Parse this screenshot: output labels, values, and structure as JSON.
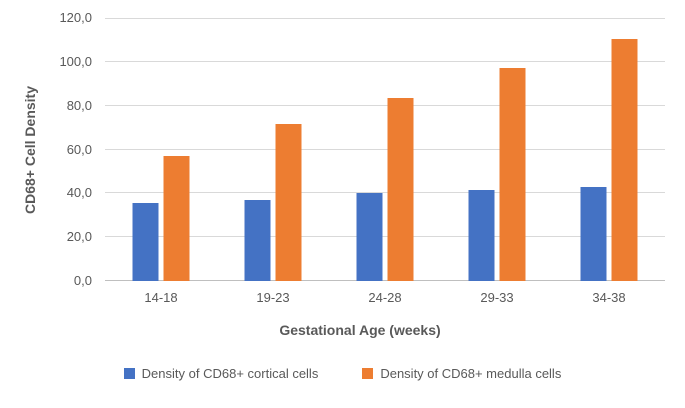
{
  "chart_data": {
    "type": "bar",
    "title": "",
    "xlabel": "Gestational Age (weeks)",
    "ylabel": "CD68+ Cell Density",
    "categories": [
      "14-18",
      "19-23",
      "24-28",
      "29-33",
      "34-38"
    ],
    "series": [
      {
        "key": "cortical",
        "name": "Density of CD68+ cortical cells",
        "color": "#4472C4",
        "values": [
          35.5,
          37,
          40,
          41.5,
          43
        ]
      },
      {
        "key": "medulla",
        "name": "Density of CD68+ medulla cells",
        "color": "#ED7D31",
        "values": [
          57,
          71.5,
          83.5,
          97,
          110.5
        ]
      }
    ],
    "ylim": [
      0,
      120
    ],
    "yticks": [
      {
        "value": 0,
        "label": "0,0"
      },
      {
        "value": 20,
        "label": "20,0"
      },
      {
        "value": 40,
        "label": "40,0"
      },
      {
        "value": 60,
        "label": "60,0"
      },
      {
        "value": 80,
        "label": "80,0"
      },
      {
        "value": 100,
        "label": "100,0"
      },
      {
        "value": 120,
        "label": "120,0"
      }
    ],
    "grid": true,
    "legend_position": "bottom",
    "colors": {
      "gridline": "#d9d9d9",
      "axis_line": "#bfbfbf",
      "text": "#595959",
      "background": "#ffffff"
    }
  }
}
